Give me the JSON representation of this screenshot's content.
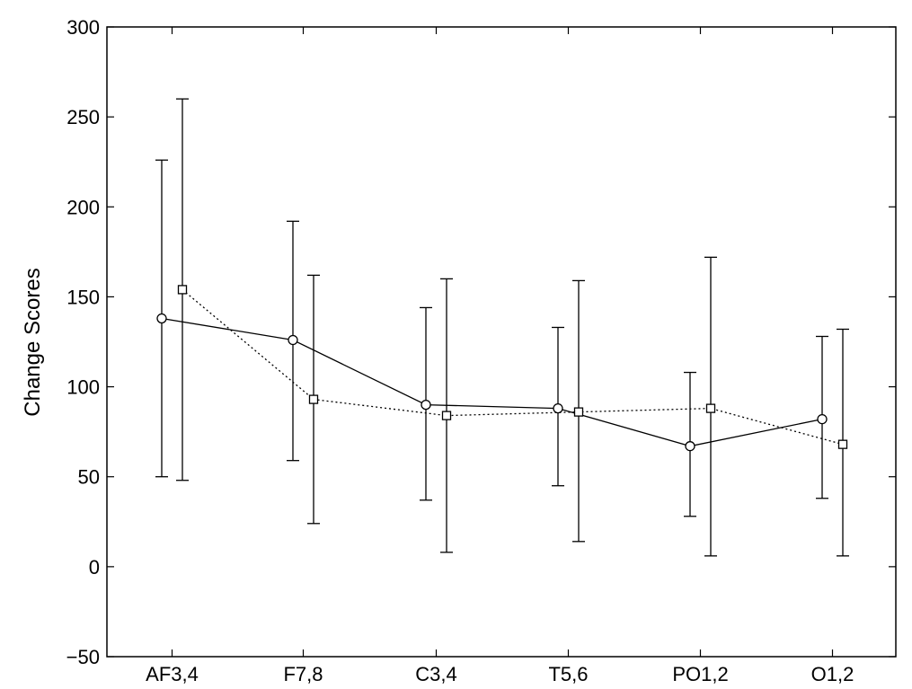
{
  "chart_data": {
    "type": "line",
    "title": "",
    "xlabel": "",
    "ylabel": "Change Scores",
    "ylim": [
      -50,
      300
    ],
    "yticks": [
      -50,
      0,
      50,
      100,
      150,
      200,
      250,
      300
    ],
    "categories": [
      "AF3,4",
      "F7,8",
      "C3,4",
      "T5,6",
      "PO1,2",
      "O1,2"
    ],
    "grid": false,
    "legend": "none",
    "series": [
      {
        "marker": "circle",
        "line_style": "solid",
        "color": "#000000",
        "values": [
          138,
          126,
          90,
          88,
          67,
          82
        ],
        "error_low": [
          50,
          59,
          37,
          45,
          28,
          38
        ],
        "error_high": [
          226,
          192,
          144,
          133,
          108,
          128
        ]
      },
      {
        "marker": "square",
        "line_style": "dotted",
        "color": "#000000",
        "values": [
          154,
          93,
          84,
          86,
          88,
          68
        ],
        "error_low": [
          48,
          24,
          8,
          14,
          6,
          6
        ],
        "error_high": [
          260,
          162,
          160,
          159,
          172,
          132
        ]
      }
    ]
  }
}
